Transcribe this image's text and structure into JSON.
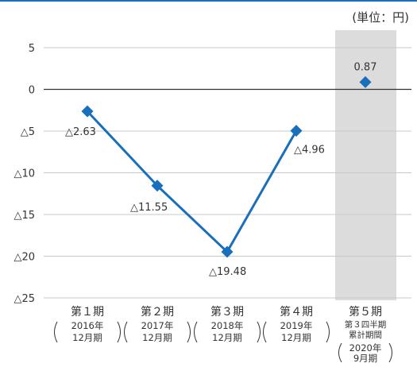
{
  "unit_label": "(単位：円)",
  "chart_data": {
    "type": "line",
    "unit": "円",
    "ylim": [
      -25,
      5
    ],
    "yticks": [
      5,
      0,
      -5,
      -10,
      -15,
      -20,
      -25
    ],
    "ytick_labels": [
      "5",
      "0",
      "△5",
      "△10",
      "△15",
      "△20",
      "△25"
    ],
    "grid": true,
    "highlight_category_index": 4,
    "categories": [
      {
        "title": "第１期",
        "sub_lines": [
          "2016年",
          "12月期"
        ]
      },
      {
        "title": "第２期",
        "sub_lines": [
          "2017年",
          "12月期"
        ]
      },
      {
        "title": "第３期",
        "sub_lines": [
          "2018年",
          "12月期"
        ]
      },
      {
        "title": "第４期",
        "sub_lines": [
          "2019年",
          "12月期"
        ]
      },
      {
        "title": "第５期",
        "sub_lines": [
          "第３四半期",
          "累計期間"
        ],
        "bracket_lines": [
          "2020年",
          "9月期"
        ]
      }
    ],
    "series": [
      {
        "values": [
          -2.63,
          -11.55,
          -19.48,
          -4.96,
          0.87
        ],
        "labels": [
          "△2.63",
          "△11.55",
          "△19.48",
          "△4.96",
          "0.87"
        ],
        "connected_points": 4
      }
    ],
    "colors": {
      "series": "#1a6fba",
      "top_rule": "#1a6fba",
      "grid": "#c8c8c8",
      "zero_line": "#333333",
      "highlight_band": "#dcdcdc"
    }
  }
}
